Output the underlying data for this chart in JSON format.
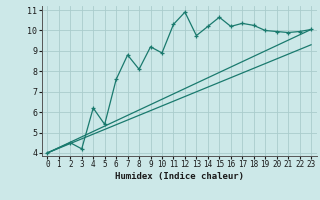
{
  "xlabel": "Humidex (Indice chaleur)",
  "bg_color": "#cce8e8",
  "grid_color": "#aacccc",
  "line_color": "#1a7a6e",
  "xlim": [
    -0.5,
    23.5
  ],
  "ylim": [
    3.85,
    11.2
  ],
  "xticks": [
    0,
    1,
    2,
    3,
    4,
    5,
    6,
    7,
    8,
    9,
    10,
    11,
    12,
    13,
    14,
    15,
    16,
    17,
    18,
    19,
    20,
    21,
    22,
    23
  ],
  "yticks": [
    4,
    5,
    6,
    7,
    8,
    9,
    10,
    11
  ],
  "series1_x": [
    0,
    2,
    3,
    4,
    5,
    6,
    7,
    8,
    9,
    10,
    11,
    12,
    13,
    14,
    15,
    16,
    17,
    18,
    19,
    20,
    21,
    22,
    23
  ],
  "series1_y": [
    4.0,
    4.5,
    4.2,
    6.2,
    5.4,
    7.6,
    8.8,
    8.1,
    9.2,
    8.9,
    10.3,
    10.9,
    9.75,
    10.2,
    10.65,
    10.2,
    10.35,
    10.25,
    10.0,
    9.95,
    9.9,
    9.95,
    10.05
  ],
  "series2_x": [
    0,
    23
  ],
  "series2_y": [
    4.0,
    10.05
  ],
  "series3_x": [
    0,
    23
  ],
  "series3_y": [
    4.0,
    9.3
  ]
}
